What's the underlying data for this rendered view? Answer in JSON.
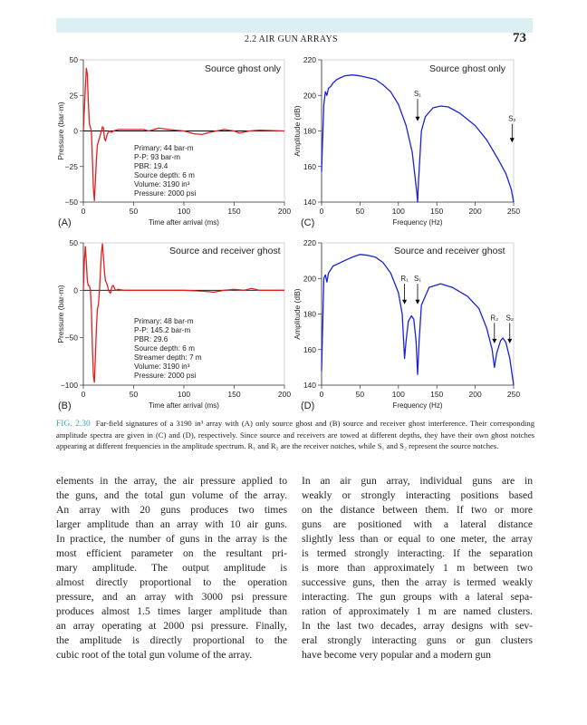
{
  "header": {
    "running_head": "2.2 AIR GUN ARRAYS",
    "page_number": "73"
  },
  "panels": {
    "A": {
      "label": "(A)",
      "title": "Source ghost only",
      "stats": [
        "Primary: 44 bar-m",
        "P-P: 93 bar-m",
        "PBR: 19.4",
        "Source depth: 6 m",
        "Volume: 3190 in³",
        "Pressure: 2000 psi"
      ]
    },
    "B": {
      "label": "(B)",
      "title": "Source and receiver ghost",
      "stats": [
        "Primary: 48 bar-m",
        "P-P: 145.2 bar-m",
        "PBR: 29.6",
        "Source depth: 6 m",
        "Streamer depth: 7 m",
        "Volume: 3190 in³",
        "Pressure: 2000 psi"
      ]
    },
    "C": {
      "label": "(C)",
      "title": "Source ghost only"
    },
    "D": {
      "label": "(D)",
      "title": "Source and receiver ghost"
    }
  },
  "chart_data": [
    {
      "id": "A",
      "type": "line",
      "xlabel": "Time after arrival (ms)",
      "ylabel": "Pressure (bar-m)",
      "xlim": [
        0,
        200
      ],
      "ylim": [
        -50,
        50
      ],
      "xticks": [
        "0",
        "50",
        "100",
        "150",
        "200"
      ],
      "yticks": [
        "−50",
        "−25",
        "0",
        "25",
        "50"
      ],
      "yticks_values": [
        -50,
        -25,
        0,
        25,
        50
      ],
      "xticks_values": [
        0,
        50,
        100,
        150,
        200
      ],
      "color": "#e02020",
      "x": [
        0,
        2,
        3,
        4,
        5,
        6,
        8,
        9,
        10,
        11,
        12,
        13,
        14,
        16,
        18,
        19,
        20,
        21,
        22,
        24,
        26,
        28,
        30,
        35,
        45,
        60,
        65,
        75,
        85,
        100,
        110,
        118,
        125,
        140,
        150,
        155,
        165,
        175,
        200
      ],
      "y": [
        0,
        30,
        44,
        40,
        20,
        5,
        0,
        -20,
        -40,
        -49,
        -35,
        -20,
        -10,
        -5,
        0,
        3,
        2,
        -5,
        -7,
        -2,
        0,
        -1,
        0,
        1,
        1,
        1,
        0,
        2,
        1,
        0,
        -2,
        -2.5,
        -1,
        1,
        0,
        -1.5,
        0,
        0.5,
        0
      ],
      "annotations": []
    },
    {
      "id": "B",
      "type": "line",
      "xlabel": "Time after arrival (ms)",
      "ylabel": "Pressure (bar-m)",
      "xlim": [
        0,
        200
      ],
      "ylim": [
        -100,
        50
      ],
      "xticks": [
        "0",
        "50",
        "100",
        "150",
        "200"
      ],
      "xticks_values": [
        0,
        50,
        100,
        150,
        200
      ],
      "yticks": [
        "−100",
        "−50",
        "0",
        "50"
      ],
      "yticks_values": [
        -100,
        -50,
        0,
        50
      ],
      "color": "#e02020",
      "x": [
        0,
        1,
        2,
        3,
        4,
        5,
        6,
        7,
        8,
        9,
        10,
        11,
        12,
        13,
        14,
        15,
        16,
        17,
        18,
        19,
        20,
        21,
        22,
        23,
        24,
        25,
        26,
        27,
        28,
        29,
        30,
        31,
        32,
        35,
        40,
        60,
        100,
        120,
        130,
        140,
        150,
        160,
        167,
        175,
        200
      ],
      "y": [
        0,
        30,
        46,
        30,
        10,
        5,
        5,
        0,
        -20,
        -60,
        -90,
        -97,
        -70,
        -40,
        -20,
        -15,
        0,
        20,
        40,
        49,
        35,
        20,
        10,
        8,
        5,
        0,
        -2,
        -3,
        2,
        5,
        5,
        2,
        0,
        1,
        0,
        0,
        0,
        -1,
        -2,
        0,
        1,
        0,
        2,
        0,
        0
      ],
      "annotations": []
    },
    {
      "id": "C",
      "type": "line",
      "xlabel": "Frequency (Hz)",
      "ylabel": "Amplitude (dB)",
      "xlim": [
        0,
        250
      ],
      "ylim": [
        140,
        220
      ],
      "xticks": [
        "0",
        "50",
        "100",
        "150",
        "200",
        "250"
      ],
      "xticks_values": [
        0,
        50,
        100,
        150,
        200,
        250
      ],
      "yticks": [
        "140",
        "160",
        "180",
        "200",
        "220"
      ],
      "yticks_values": [
        140,
        160,
        180,
        200,
        220
      ],
      "color": "#1a22d8",
      "x": [
        0,
        1,
        3,
        5,
        7,
        9,
        12,
        15,
        20,
        30,
        40,
        50,
        60,
        70,
        80,
        90,
        100,
        110,
        118,
        124,
        125,
        126,
        130,
        135,
        145,
        155,
        165,
        180,
        200,
        215,
        230,
        240,
        247,
        250
      ],
      "y": [
        157,
        170,
        195,
        202,
        200,
        204,
        205,
        207,
        209,
        211,
        211.5,
        211,
        210,
        209,
        206,
        202,
        195,
        183,
        168,
        145,
        140,
        150,
        180,
        188,
        193,
        194,
        193.5,
        190,
        183,
        175,
        164,
        156,
        147,
        140
      ],
      "annotations": [
        {
          "text": "S₁",
          "x": 125,
          "y_from": 198,
          "y_to": 186
        },
        {
          "text": "S₂",
          "x": 248,
          "y_from": 184,
          "y_to": 174
        }
      ]
    },
    {
      "id": "D",
      "type": "line",
      "xlabel": "Frequency (Hz)",
      "ylabel": "Amplitude (dB)",
      "xlim": [
        0,
        250
      ],
      "ylim": [
        140,
        220
      ],
      "xticks": [
        "0",
        "50",
        "100",
        "150",
        "200",
        "250"
      ],
      "xticks_values": [
        0,
        50,
        100,
        150,
        200,
        250
      ],
      "yticks": [
        "140",
        "160",
        "180",
        "200",
        "220"
      ],
      "yticks_values": [
        140,
        160,
        180,
        200,
        220
      ],
      "color": "#1a22d8",
      "x": [
        0,
        1,
        3,
        5,
        7,
        9,
        12,
        15,
        20,
        30,
        40,
        50,
        60,
        70,
        80,
        90,
        100,
        105,
        108,
        110,
        113,
        117,
        120,
        123,
        125,
        127,
        130,
        140,
        155,
        170,
        190,
        205,
        215,
        222,
        225,
        228,
        233,
        236,
        240,
        245,
        250
      ],
      "y": [
        148,
        165,
        200,
        202,
        198,
        203,
        205,
        207,
        208,
        210,
        212,
        213.5,
        213,
        212,
        209,
        203,
        192,
        180,
        155,
        165,
        176,
        179,
        177,
        165,
        146,
        165,
        185,
        195,
        197,
        195,
        190,
        183,
        172,
        160,
        150,
        158,
        165,
        166.5,
        164,
        155,
        140
      ],
      "annotations": [
        {
          "text": "R₁",
          "x": 108,
          "y_from": 197,
          "y_to": 186
        },
        {
          "text": "S₁",
          "x": 125,
          "y_from": 197,
          "y_to": 186
        },
        {
          "text": "R₂",
          "x": 225,
          "y_from": 175,
          "y_to": 164
        },
        {
          "text": "S₂",
          "x": 245,
          "y_from": 175,
          "y_to": 164
        }
      ]
    }
  ],
  "caption": {
    "fig_label": "FIG. 2.30",
    "text": "Far-field signatures of a 3190 in³ array with (A) only source ghost and (B) source and receiver ghost interference. Their corresponding amplitude spectra are given in (C) and (D), respectively. Since source and receivers are towed at different depths, they have their own ghost notches appearing at different frequencies in the amplitude spectrum. R₁ and R₂ are the receiver notches, while S₁ and S₂ represent the source notches."
  },
  "body": {
    "left": [
      "elements in the array, the air pressure applied to",
      "the guns, and the total gun volume of the array.",
      "An array with 20 guns produces two times",
      "larger amplitude than an array with 10 air guns.",
      "In practice, the number of guns in the array is the",
      "most efficient parameter on the resultant pri-",
      "mary amplitude. The output amplitude is",
      "almost directly proportional to the operation",
      "pressure, and an array with 3000 psi pressure",
      "produces almost 1.5 times larger amplitude than",
      "an array operating at 2000 psi pressure. Finally,",
      "the amplitude is directly proportional to the",
      "cubic root of the total gun volume of the array."
    ],
    "right": [
      "In an air gun array, individual guns are in",
      "weakly or strongly interacting positions based",
      "on the distance between them. If two or more",
      "guns are positioned with a lateral distance",
      "slightly less than or equal to one meter, the array",
      "is termed strongly interacting. If the separation",
      "is more than approximately 1 m between two",
      "successive guns, then the array is termed weakly",
      "interacting. The gun groups with a lateral sepa-",
      "ration of approximately 1 m are named clusters.",
      "In the last two decades, array designs with sev-",
      "eral strongly interacting guns or gun clusters",
      "have become very popular and a modern gun"
    ]
  }
}
